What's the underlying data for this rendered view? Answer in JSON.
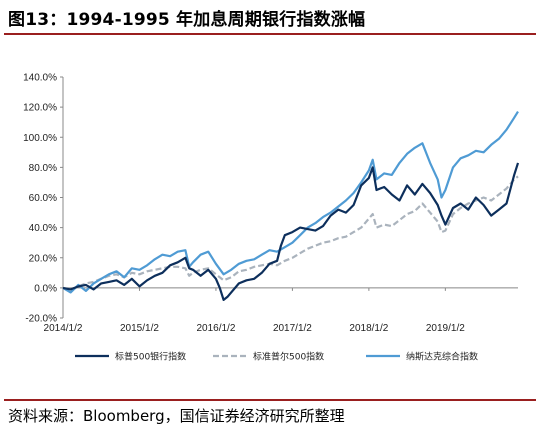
{
  "figure": {
    "title": "图13：1994-1995 年加息周期银行指数涨幅",
    "source": "资料来源：Bloomberg，国信证券经济研究所整理"
  },
  "colors": {
    "bank": "#0d2f5c",
    "sp500": "#aab3bd",
    "nasdaq": "#4f9bd4",
    "rule": "#9a1f1f"
  },
  "chart_data": {
    "type": "line",
    "ylim": [
      -20,
      140
    ],
    "y_ticks": [
      "-20.0%",
      "0.0%",
      "20.0%",
      "40.0%",
      "60.0%",
      "80.0%",
      "100.0%",
      "120.0%",
      "140.0%"
    ],
    "y_tick_values": [
      -20,
      0,
      20,
      40,
      60,
      80,
      100,
      120,
      140
    ],
    "x_ticks": [
      "2014/1/2",
      "2015/1/2",
      "2016/1/2",
      "2017/1/2",
      "2018/1/2",
      "2019/1/2"
    ],
    "x_tick_values": [
      2014.0,
      2015.0,
      2016.0,
      2017.0,
      2018.0,
      2019.0
    ],
    "xlim": [
      2014.0,
      2019.95
    ],
    "legend_position": "bottom",
    "series": [
      {
        "name": "标普500银行指数",
        "style": "solid",
        "x": [
          2014.0,
          2014.1,
          2014.2,
          2014.3,
          2014.4,
          2014.5,
          2014.6,
          2014.7,
          2014.8,
          2014.9,
          2015.0,
          2015.1,
          2015.2,
          2015.3,
          2015.4,
          2015.5,
          2015.6,
          2015.65,
          2015.7,
          2015.8,
          2015.9,
          2016.0,
          2016.05,
          2016.1,
          2016.15,
          2016.2,
          2016.3,
          2016.4,
          2016.5,
          2016.6,
          2016.7,
          2016.8,
          2016.85,
          2016.9,
          2017.0,
          2017.1,
          2017.2,
          2017.3,
          2017.4,
          2017.5,
          2017.6,
          2017.7,
          2017.8,
          2017.9,
          2018.0,
          2018.05,
          2018.1,
          2018.2,
          2018.3,
          2018.4,
          2018.5,
          2018.6,
          2018.7,
          2018.8,
          2018.9,
          2018.95,
          2019.0,
          2019.1,
          2019.2,
          2019.3,
          2019.4,
          2019.5,
          2019.6,
          2019.7,
          2019.8,
          2019.9,
          2019.95
        ],
        "values": [
          0,
          -1,
          1,
          2,
          -1,
          3,
          4,
          5,
          2,
          6,
          1,
          5,
          8,
          10,
          15,
          17,
          20,
          13,
          12,
          8,
          12,
          6,
          0,
          -8,
          -6,
          -3,
          3,
          5,
          6,
          10,
          16,
          18,
          28,
          35,
          37,
          40,
          39,
          38,
          41,
          48,
          52,
          50,
          55,
          68,
          73,
          80,
          65,
          67,
          62,
          58,
          68,
          62,
          69,
          63,
          55,
          48,
          42,
          53,
          56,
          52,
          60,
          55,
          48,
          52,
          56,
          75,
          83
        ]
      },
      {
        "name": "标准普尔500指数",
        "style": "dashed",
        "x": [
          2014.0,
          2014.1,
          2014.2,
          2014.3,
          2014.4,
          2014.5,
          2014.6,
          2014.7,
          2014.8,
          2014.9,
          2015.0,
          2015.1,
          2015.2,
          2015.3,
          2015.4,
          2015.5,
          2015.6,
          2015.65,
          2015.7,
          2015.8,
          2015.9,
          2016.0,
          2016.1,
          2016.2,
          2016.3,
          2016.4,
          2016.5,
          2016.6,
          2016.7,
          2016.8,
          2016.9,
          2017.0,
          2017.1,
          2017.2,
          2017.3,
          2017.4,
          2017.5,
          2017.6,
          2017.7,
          2017.8,
          2017.9,
          2018.0,
          2018.05,
          2018.1,
          2018.2,
          2018.3,
          2018.4,
          2018.5,
          2018.6,
          2018.7,
          2018.8,
          2018.9,
          2018.95,
          2019.0,
          2019.1,
          2019.2,
          2019.3,
          2019.4,
          2019.5,
          2019.6,
          2019.7,
          2019.8,
          2019.9,
          2019.95
        ],
        "values": [
          0,
          -2,
          1,
          3,
          4,
          6,
          8,
          9,
          7,
          10,
          9,
          11,
          12,
          13,
          14,
          14,
          13,
          8,
          10,
          12,
          13,
          9,
          5,
          7,
          11,
          12,
          14,
          15,
          16,
          15,
          18,
          20,
          23,
          26,
          28,
          30,
          31,
          33,
          34,
          37,
          40,
          46,
          49,
          40,
          42,
          41,
          45,
          49,
          51,
          56,
          50,
          44,
          37,
          38,
          49,
          53,
          56,
          58,
          60,
          58,
          62,
          66,
          72,
          74
        ]
      },
      {
        "name": "纳斯达克综合指数",
        "style": "solid",
        "x": [
          2014.0,
          2014.1,
          2014.2,
          2014.3,
          2014.4,
          2014.5,
          2014.6,
          2014.7,
          2014.8,
          2014.9,
          2015.0,
          2015.1,
          2015.2,
          2015.3,
          2015.4,
          2015.5,
          2015.6,
          2015.65,
          2015.7,
          2015.8,
          2015.9,
          2016.0,
          2016.1,
          2016.2,
          2016.3,
          2016.4,
          2016.5,
          2016.6,
          2016.7,
          2016.8,
          2016.9,
          2017.0,
          2017.1,
          2017.2,
          2017.3,
          2017.4,
          2017.5,
          2017.6,
          2017.7,
          2017.8,
          2017.9,
          2018.0,
          2018.05,
          2018.1,
          2018.2,
          2018.3,
          2018.4,
          2018.5,
          2018.6,
          2018.7,
          2018.8,
          2018.9,
          2018.95,
          2019.0,
          2019.1,
          2019.2,
          2019.3,
          2019.4,
          2019.5,
          2019.6,
          2019.7,
          2019.8,
          2019.9,
          2019.95
        ],
        "values": [
          0,
          -3,
          2,
          -2,
          3,
          6,
          9,
          11,
          7,
          13,
          12,
          15,
          19,
          22,
          21,
          24,
          25,
          14,
          17,
          22,
          24,
          16,
          9,
          12,
          16,
          18,
          19,
          22,
          25,
          24,
          27,
          30,
          35,
          40,
          43,
          47,
          50,
          54,
          58,
          63,
          70,
          78,
          85,
          72,
          76,
          75,
          83,
          89,
          93,
          96,
          83,
          72,
          60,
          65,
          80,
          86,
          88,
          91,
          90,
          95,
          99,
          105,
          113,
          117
        ]
      }
    ]
  }
}
